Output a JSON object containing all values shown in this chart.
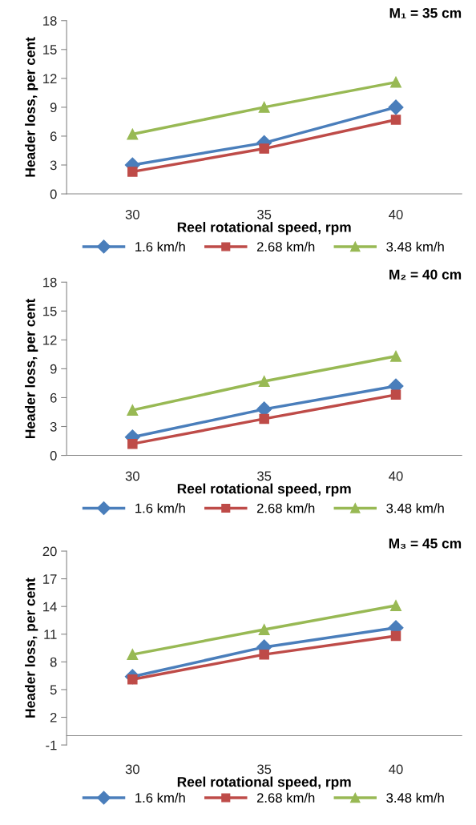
{
  "chart_data": [
    {
      "type": "line",
      "title": "M₁ = 35 cm",
      "xlabel": "Reel rotational speed, rpm",
      "ylabel": "Header loss, per cent",
      "categories": [
        "30",
        "35",
        "40"
      ],
      "ylim": [
        0,
        18
      ],
      "yticks": [
        0,
        3,
        6,
        9,
        12,
        15,
        18
      ],
      "legend": "bottom",
      "grid": false,
      "series": [
        {
          "name": "1.6 km/h",
          "color": "#4a7ebb",
          "marker": "diamond",
          "values": [
            3.0,
            5.3,
            9.0
          ]
        },
        {
          "name": "2.68 km/h",
          "color": "#be4b48",
          "marker": "square",
          "values": [
            2.3,
            4.7,
            7.7
          ]
        },
        {
          "name": "3.48 km/h",
          "color": "#98b954",
          "marker": "triangle",
          "values": [
            6.2,
            9.0,
            11.6
          ]
        }
      ]
    },
    {
      "type": "line",
      "title": "M₂ = 40 cm",
      "xlabel": "Reel rotational speed, rpm",
      "ylabel": "Header loss, per cent",
      "categories": [
        "30",
        "35",
        "40"
      ],
      "ylim": [
        0,
        18
      ],
      "yticks": [
        0,
        3,
        6,
        9,
        12,
        15,
        18
      ],
      "legend": "bottom",
      "grid": false,
      "series": [
        {
          "name": "1.6 km/h",
          "color": "#4a7ebb",
          "marker": "diamond",
          "values": [
            1.9,
            4.8,
            7.2
          ]
        },
        {
          "name": "2.68 km/h",
          "color": "#be4b48",
          "marker": "square",
          "values": [
            1.2,
            3.8,
            6.3
          ]
        },
        {
          "name": "3.48 km/h",
          "color": "#98b954",
          "marker": "triangle",
          "values": [
            4.7,
            7.7,
            10.3
          ]
        }
      ]
    },
    {
      "type": "line",
      "title": "M₃ = 45 cm",
      "xlabel": "Reel rotational speed, rpm",
      "ylabel": "Header loss, per cent",
      "categories": [
        "30",
        "35",
        "40"
      ],
      "ylim": [
        -1,
        20
      ],
      "yticks": [
        -1,
        2,
        5,
        8,
        11,
        14,
        17,
        20
      ],
      "legend": "bottom",
      "grid": false,
      "series": [
        {
          "name": "1.6 km/h",
          "color": "#4a7ebb",
          "marker": "diamond",
          "values": [
            6.4,
            9.6,
            11.7
          ]
        },
        {
          "name": "2.68 km/h",
          "color": "#be4b48",
          "marker": "square",
          "values": [
            6.1,
            8.8,
            10.8
          ]
        },
        {
          "name": "3.48 km/h",
          "color": "#98b954",
          "marker": "triangle",
          "values": [
            8.8,
            11.5,
            14.1
          ]
        }
      ]
    }
  ]
}
